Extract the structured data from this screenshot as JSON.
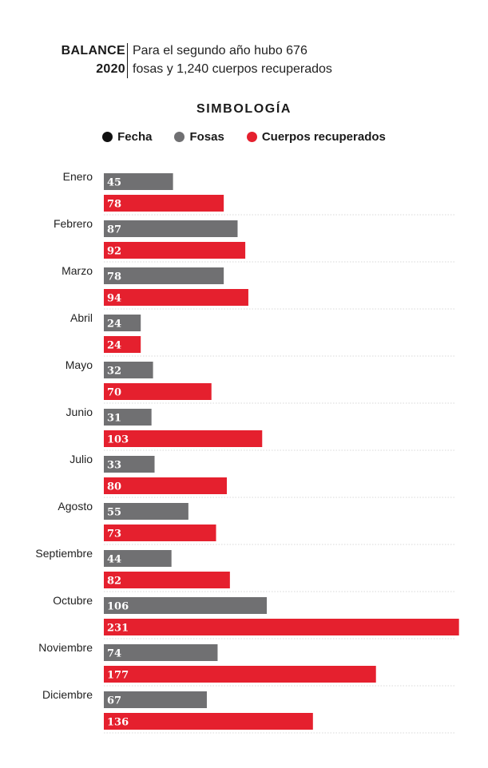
{
  "header": {
    "tag_line1": "BALANCE",
    "tag_line2": "2020",
    "desc_line1": "Para el segundo año hubo 676",
    "desc_line2": "fosas y 1,240 cuerpos recuperados"
  },
  "legend": {
    "title": "SIMBOLOGÍA",
    "items": [
      {
        "label": "Fecha",
        "color": "#111111"
      },
      {
        "label": "Fosas",
        "color": "#707072"
      },
      {
        "label": "Cuerpos recuperados",
        "color": "#e5202e"
      }
    ]
  },
  "chart_data": {
    "type": "bar",
    "orientation": "horizontal",
    "categories": [
      "Enero",
      "Febrero",
      "Marzo",
      "Abril",
      "Mayo",
      "Junio",
      "Julio",
      "Agosto",
      "Septiembre",
      "Octubre",
      "Noviembre",
      "Diciembre"
    ],
    "series": [
      {
        "name": "Fosas",
        "color": "#707072",
        "values": [
          45,
          87,
          78,
          24,
          32,
          31,
          33,
          55,
          44,
          106,
          74,
          67
        ]
      },
      {
        "name": "Cuerpos recuperados",
        "color": "#e5202e",
        "values": [
          78,
          92,
          94,
          24,
          70,
          103,
          80,
          73,
          82,
          231,
          177,
          136
        ]
      }
    ],
    "data_labels": true,
    "grid": false,
    "title": "",
    "xlabel": "",
    "ylabel": ""
  }
}
